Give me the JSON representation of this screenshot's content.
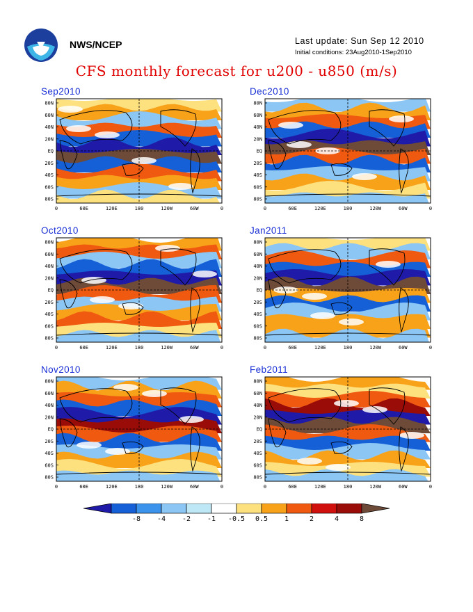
{
  "header": {
    "agency": "NWS/NCEP",
    "last_update": "Last update: Sun Sep 12 2010",
    "initial_conditions": "Initial conditions: 23Aug2010-1Sep2010",
    "title": "CFS monthly forecast for u200 - u850 (m/s)"
  },
  "logo": {
    "name": "noaa-logo"
  },
  "map_axes": {
    "lat_labels": [
      "80N",
      "60N",
      "40N",
      "20N",
      "EQ",
      "20S",
      "40S",
      "60S",
      "80S"
    ],
    "lon_labels": [
      "0",
      "60E",
      "120E",
      "180",
      "120W",
      "60W",
      "0"
    ]
  },
  "panels": [
    {
      "label": "Sep2010"
    },
    {
      "label": "Dec2010"
    },
    {
      "label": "Oct2010"
    },
    {
      "label": "Jan2011"
    },
    {
      "label": "Nov2010"
    },
    {
      "label": "Feb2011"
    }
  ],
  "colorbar": {
    "labels": [
      "-8",
      "-4",
      "-2",
      "-1",
      "-0.5",
      "0.5",
      "1",
      "2",
      "4",
      "8"
    ],
    "colors": [
      "#1f1ba8",
      "#1560d6",
      "#3c93ec",
      "#8cc6f5",
      "#bfe8f7",
      "#ffffff",
      "#fde17f",
      "#f8a21a",
      "#f05a10",
      "#d0100c",
      "#9a0c08",
      "#6e4a38"
    ]
  },
  "palette": {
    "ocean_blue_deep": "#1f1ba8",
    "blue": "#1560d6",
    "light_blue": "#8cc6f5",
    "yellow": "#fde17f",
    "orange": "#f8a21a",
    "red": "#f05a10",
    "dark_red": "#9a0c08",
    "brown": "#6e4a38"
  }
}
